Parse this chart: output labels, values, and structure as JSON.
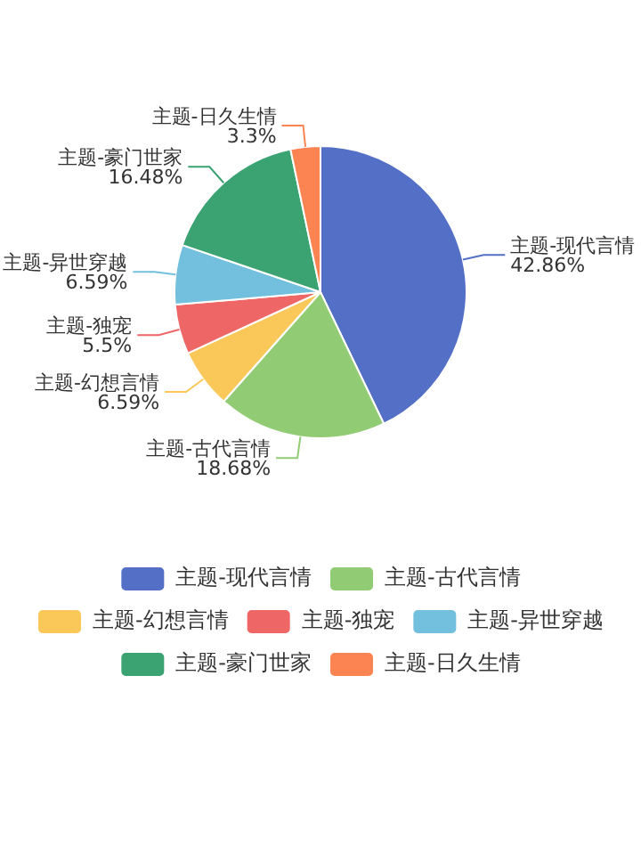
{
  "chart_data": {
    "type": "pie",
    "categories": [
      "主题-现代言情",
      "主题-古代言情",
      "主题-幻想言情",
      "主题-独宠",
      "主题-异世穿越",
      "主题-豪门世家",
      "主题-日久生情"
    ],
    "values": [
      42.86,
      18.68,
      6.59,
      5.5,
      6.59,
      16.48,
      3.3
    ],
    "value_labels": [
      "42.86%",
      "18.68%",
      "6.59%",
      "5.5%",
      "6.59%",
      "16.48%",
      "3.3%"
    ],
    "colors": [
      "#5470c6",
      "#91cc75",
      "#fac858",
      "#ee6666",
      "#73c0de",
      "#3ba272",
      "#fc8452"
    ],
    "legend": "bottom"
  }
}
